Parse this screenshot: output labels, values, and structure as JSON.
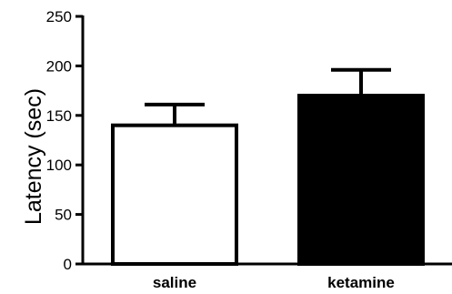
{
  "chart_data": {
    "type": "bar",
    "categories": [
      "saline",
      "ketamine"
    ],
    "values": [
      140,
      170
    ],
    "error_upper": [
      161,
      196
    ],
    "ylabel": "Latency (sec)",
    "xlabel": "",
    "ylim": [
      0,
      250
    ],
    "yticks": [
      "0",
      "50",
      "100",
      "150",
      "200",
      "250"
    ],
    "bar_fills": [
      "#ffffff",
      "#000000"
    ],
    "stroke_color": "#000000",
    "grid": false,
    "legend": "none"
  }
}
